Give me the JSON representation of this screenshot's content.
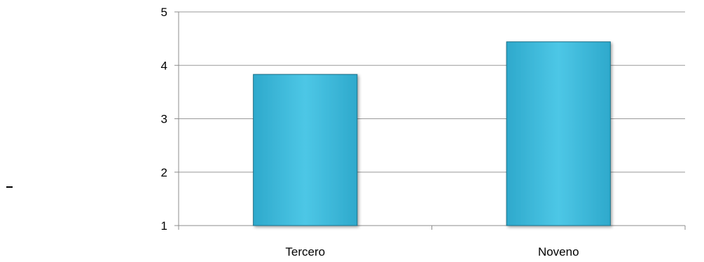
{
  "chart_data": {
    "type": "bar",
    "categories": [
      "Tercero",
      "Noveno"
    ],
    "values": [
      3.83,
      4.44
    ],
    "title": "",
    "xlabel": "",
    "ylabel": "",
    "ylim": [
      1,
      5
    ],
    "yticks": [
      "1",
      "2",
      "3",
      "4",
      "5"
    ],
    "grid": true,
    "legend": "none",
    "bar_color": "#2ea9cc",
    "bar_highlight": "#4dc7e6",
    "bar_edge": "#1b6f88"
  },
  "decoration": {
    "stray_mark": "-"
  }
}
